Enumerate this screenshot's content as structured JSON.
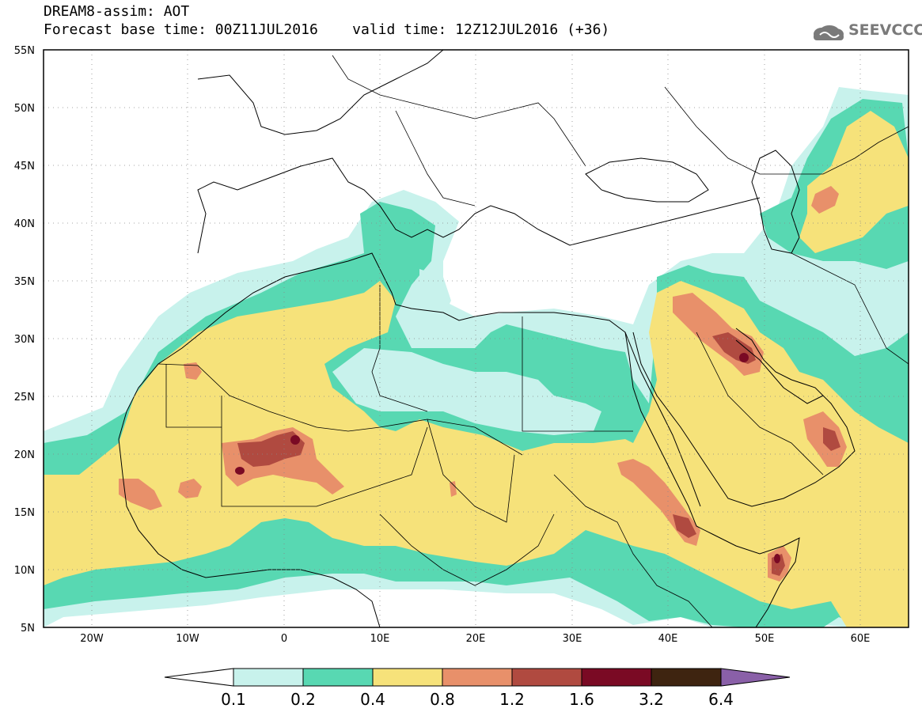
{
  "header": {
    "title": "DREAM8-assim: AOT",
    "forecast_base_time": "Forecast base time: 00Z11JUL2016",
    "valid_time": "valid time: 12Z12JUL2016 (+36)"
  },
  "logo": {
    "text": "SEEVCCC",
    "icon": "cloud-icon"
  },
  "map": {
    "lat_range": [
      5,
      55
    ],
    "lon_range": [
      -25,
      65
    ],
    "lat_labels": [
      "55N",
      "50N",
      "45N",
      "40N",
      "35N",
      "30N",
      "25N",
      "20N",
      "15N",
      "10N",
      "5N"
    ],
    "lon_labels": [
      "20W",
      "10W",
      "0",
      "10E",
      "20E",
      "30E",
      "40E",
      "50E",
      "60E"
    ]
  },
  "colorbar": {
    "labels": [
      "0.1",
      "0.2",
      "0.4",
      "0.8",
      "1.2",
      "1.6",
      "3.2",
      "6.4"
    ],
    "colors": [
      "#ffffff",
      "#c8f2ec",
      "#58d8b2",
      "#f6e27a",
      "#e8906a",
      "#b04a40",
      "#7a0a24",
      "#3e2410",
      "#8a60a8"
    ]
  }
}
